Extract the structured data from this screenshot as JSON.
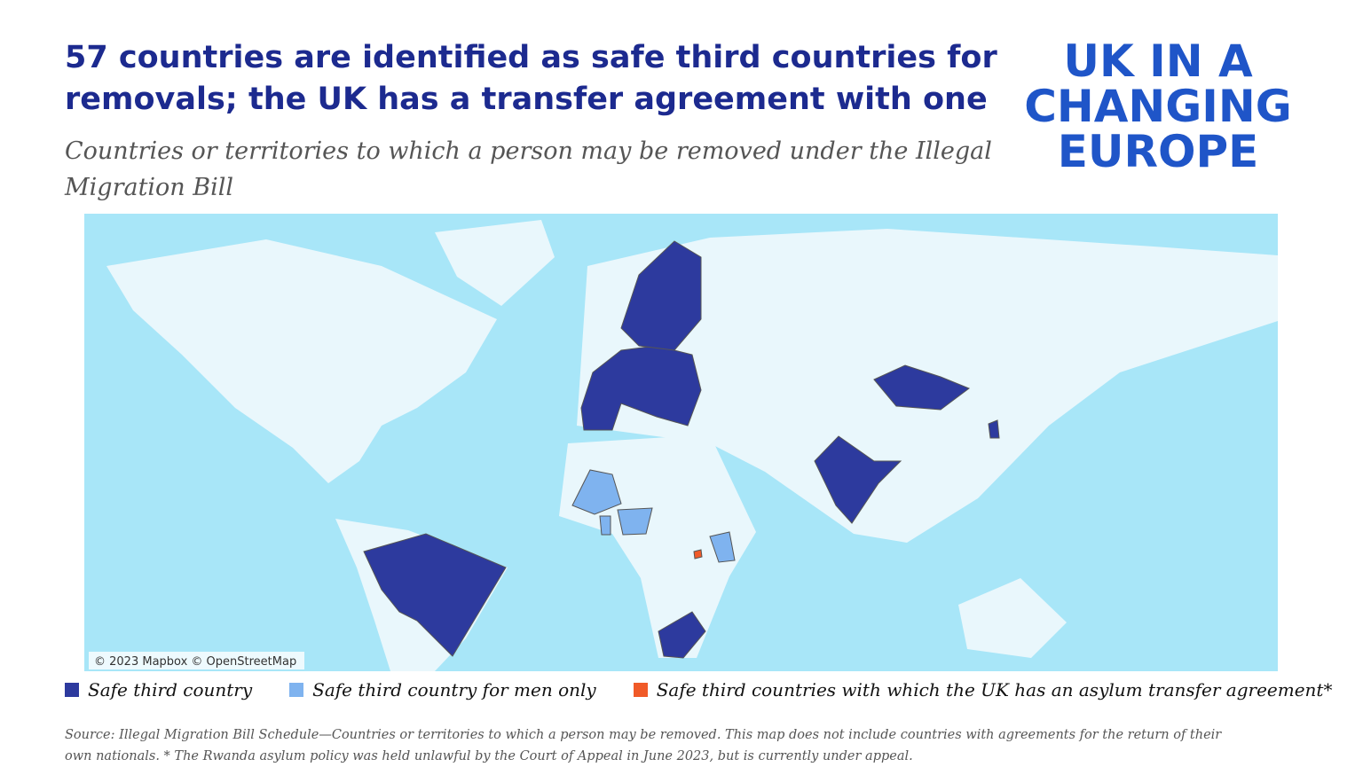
{
  "header": {
    "title_lines": [
      "57 countries are identified as safe third countries for",
      "removals; the UK has a transfer agreement with one"
    ],
    "subtitle_lines": [
      "Countries or territories to which a person may be removed under the Illegal",
      "Migration Bill"
    ]
  },
  "logo": {
    "lines": [
      "UK IN A",
      "CHANGING",
      "EUROPE"
    ]
  },
  "map": {
    "attribution": "© 2023 Mapbox © OpenStreetMap"
  },
  "legend": {
    "items": [
      {
        "label": "Safe third country",
        "color": "#2d3a9e"
      },
      {
        "label": "Safe third country for men only",
        "color": "#7fb3ef"
      },
      {
        "label": "Safe third countries with which the UK has an asylum transfer agreement*",
        "color": "#f05a28"
      }
    ]
  },
  "source": {
    "lines": [
      "Source: Illegal Migration Bill Schedule—Countries or territories to which a person may be removed. This map does not include countries with agreements for the return of their",
      "own nationals. * The Rwanda asylum policy was held unlawful by the Court of Appeal in June 2023, but is currently under appeal."
    ]
  }
}
